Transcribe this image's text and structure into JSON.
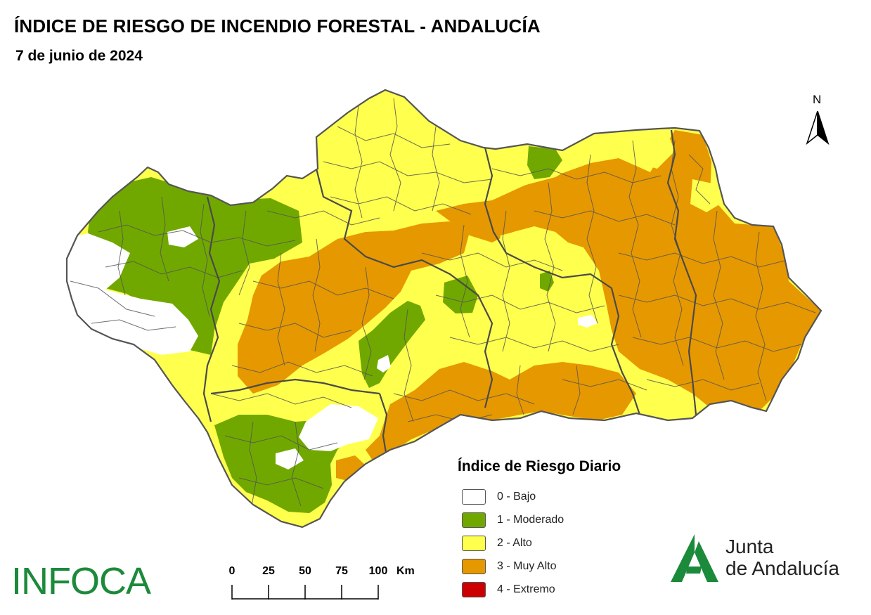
{
  "title": "ÍNDICE DE RIESGO DE INCENDIO FORESTAL - ANDALUCÍA",
  "date": "7 de junio de 2024",
  "north_label": "N",
  "legend": {
    "title": "Índice de Riesgo Diario",
    "items": [
      {
        "label": "0 - Bajo",
        "color": "#ffffff"
      },
      {
        "label": "1 - Moderado",
        "color": "#70a800"
      },
      {
        "label": "2 - Alto",
        "color": "#ffff4d"
      },
      {
        "label": "3 - Muy Alto",
        "color": "#e69800"
      },
      {
        "label": "4 - Extremo",
        "color": "#cc0000"
      }
    ]
  },
  "scale": {
    "ticks": [
      "0",
      "25",
      "50",
      "75",
      "100"
    ],
    "unit": "Km"
  },
  "infoca_logo": "INFOCA",
  "junta_logo": {
    "line1": "Junta",
    "line2": "de Andalucía",
    "color": "#1b8a3a"
  },
  "colors": {
    "border": "#555555",
    "infoca": "#1b8a3a"
  }
}
